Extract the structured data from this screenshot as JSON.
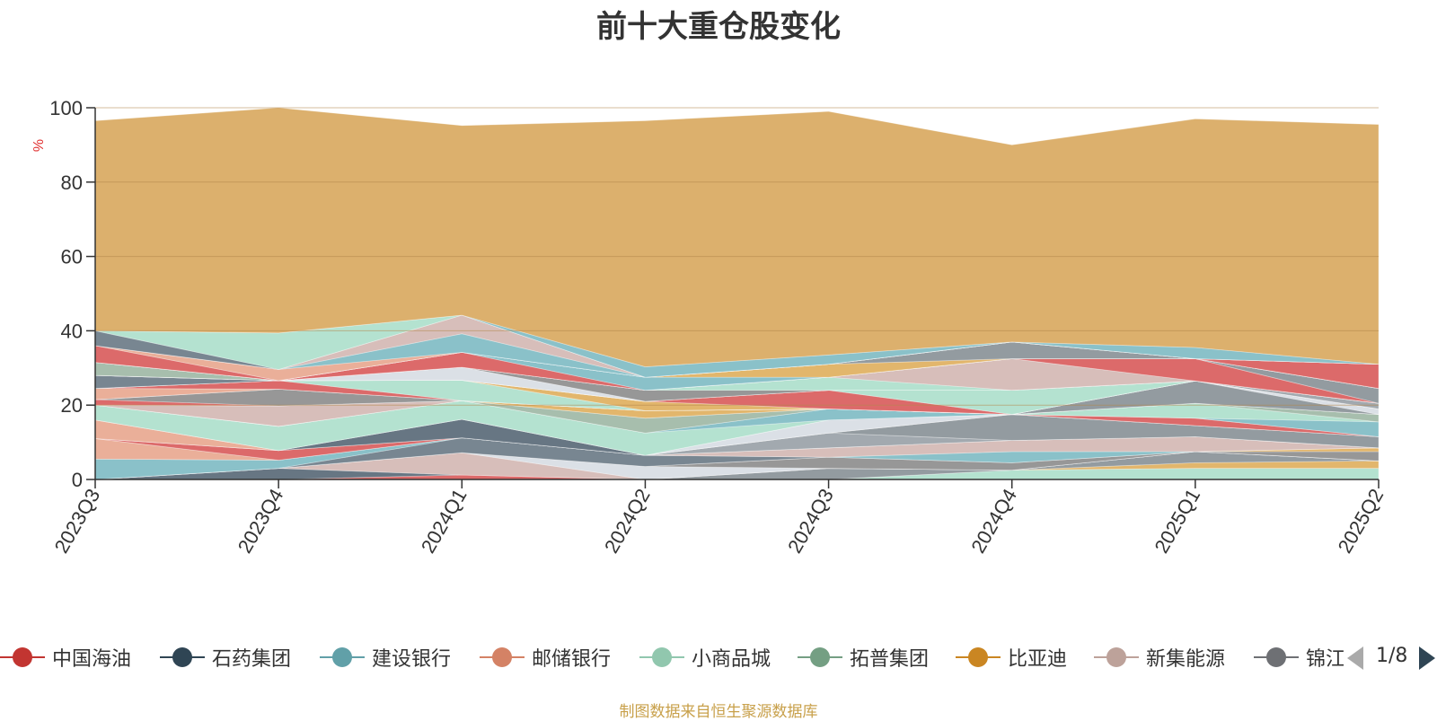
{
  "chart_title": "前十大重仓股变化",
  "source_note": "制图数据来自恒生聚源数据库",
  "legend_pager": "1/8",
  "chart_data": {
    "type": "area",
    "stacked": true,
    "title": "前十大重仓股变化",
    "ylabel": "%",
    "ylim": [
      0,
      100
    ],
    "yticks": [
      0,
      20,
      40,
      60,
      80,
      100
    ],
    "grid": true,
    "categories": [
      "2023Q3",
      "2023Q4",
      "2024Q1",
      "2024Q2",
      "2024Q3",
      "2024Q4",
      "2025Q1",
      "2025Q2"
    ],
    "legend_position": "bottom",
    "legend_visible": [
      "中国海油",
      "石药集团",
      "建设银行",
      "邮储银行",
      "小商品城",
      "拓普集团",
      "比亚迪",
      "新集能源",
      "锦江"
    ],
    "series": [
      {
        "name": "",
        "color": "#aee0cc",
        "values": [
          0,
          0,
          0,
          0,
          0,
          2.5,
          3,
          3
        ]
      },
      {
        "name": "",
        "color": "#e0b060",
        "values": [
          0,
          0,
          0,
          0,
          0,
          0,
          1.5,
          2
        ]
      },
      {
        "name": "",
        "color": "#8a9398",
        "values": [
          0,
          0,
          0,
          0,
          3,
          0,
          3,
          0
        ]
      },
      {
        "name": "中国海油",
        "color": "#d95d5d",
        "values": [
          0,
          0,
          1.2,
          0,
          0,
          0,
          0,
          0
        ]
      },
      {
        "name": "石药集团",
        "color": "#5a6a78",
        "values": [
          0,
          3,
          0,
          0,
          0,
          0,
          0,
          0
        ]
      },
      {
        "name": "新集能源",
        "color": "#d4b8b4",
        "values": [
          0,
          0,
          6,
          0,
          0,
          0,
          0,
          0
        ]
      },
      {
        "name": "",
        "color": "#d8dde4",
        "values": [
          0,
          0,
          0,
          3.5,
          0,
          0,
          0,
          0
        ]
      },
      {
        "name": "",
        "color": "#8e8e8e",
        "values": [
          0,
          0,
          0,
          0,
          3,
          2,
          0,
          2.5
        ]
      },
      {
        "name": "",
        "color": "#e0b060",
        "values": [
          0,
          0,
          0,
          0,
          0,
          0,
          0,
          1
        ]
      },
      {
        "name": "",
        "color": "#6d7c88",
        "values": [
          0,
          0,
          4,
          3,
          0,
          0,
          0,
          0
        ]
      },
      {
        "name": "建设银行",
        "color": "#80bcc4",
        "values": [
          5.5,
          2.2,
          0,
          0,
          0,
          3,
          0,
          0
        ]
      },
      {
        "name": "",
        "color": "#d4b8b4",
        "values": [
          0,
          0,
          0,
          0,
          2.5,
          3,
          4,
          0
        ]
      },
      {
        "name": "邮储银行",
        "color": "#e8a890",
        "values": [
          5.5,
          0,
          0,
          0,
          0,
          0,
          0,
          0
        ]
      },
      {
        "name": "",
        "color": "#d95d5d",
        "values": [
          0,
          2.6,
          0,
          0,
          0,
          0,
          0,
          0
        ]
      },
      {
        "name": "",
        "color": "#9aa2a8",
        "values": [
          0,
          0,
          0,
          0,
          4,
          0,
          0,
          0
        ]
      },
      {
        "name": "",
        "color": "#8a9398",
        "values": [
          0,
          0,
          0,
          0,
          0,
          7,
          3,
          3
        ]
      },
      {
        "name": "",
        "color": "#5a6a78",
        "values": [
          0,
          0,
          5,
          0,
          0,
          0,
          0,
          0
        ]
      },
      {
        "name": "",
        "color": "#e8a890",
        "values": [
          5,
          0,
          0,
          0,
          0,
          0,
          0,
          0
        ]
      },
      {
        "name": "",
        "color": "#d8dde4",
        "values": [
          0,
          0,
          0,
          0,
          3.5,
          0,
          0,
          0
        ]
      },
      {
        "name": "",
        "color": "#d95d5d",
        "values": [
          0,
          0,
          0,
          0,
          0,
          0,
          2,
          0
        ]
      },
      {
        "name": "小商品城",
        "color": "#aee0cc",
        "values": [
          4,
          6.5,
          5,
          6,
          0,
          0,
          0,
          0
        ]
      },
      {
        "name": "",
        "color": "#80bcc4",
        "values": [
          0,
          0,
          0,
          0,
          3,
          0,
          0,
          4
        ]
      },
      {
        "name": "",
        "color": "#aee0cc",
        "values": [
          0,
          0,
          0,
          0,
          0,
          0,
          4,
          0
        ]
      },
      {
        "name": "拓普集团",
        "color": "#9fb8a6",
        "values": [
          0,
          0,
          0,
          4,
          0,
          0,
          0,
          2
        ]
      },
      {
        "name": "",
        "color": "#d4b8b4",
        "values": [
          0,
          5.5,
          0,
          0,
          0,
          0,
          0,
          0
        ]
      },
      {
        "name": "",
        "color": "#e0b060",
        "values": [
          0,
          0,
          0,
          2,
          0,
          0,
          0,
          0
        ]
      },
      {
        "name": "",
        "color": "#d95d5d",
        "values": [
          1.5,
          0,
          0,
          0,
          0,
          0,
          0,
          0
        ]
      },
      {
        "name": "",
        "color": "#8e8e8e",
        "values": [
          0,
          4.5,
          0,
          0,
          0,
          0,
          0,
          0
        ]
      },
      {
        "name": "",
        "color": "#8a9398",
        "values": [
          0,
          0,
          0,
          0,
          0,
          0,
          6,
          0
        ]
      },
      {
        "name": "",
        "color": "#d8dde4",
        "values": [
          0,
          0,
          0,
          0,
          0,
          0,
          0,
          1.5
        ]
      },
      {
        "name": "",
        "color": "#e8a890",
        "values": [
          3,
          0,
          0,
          0,
          0,
          0,
          0,
          0
        ]
      },
      {
        "name": "",
        "color": "#d95d5d",
        "values": [
          0,
          2.3,
          0,
          0,
          0,
          0,
          0,
          0
        ]
      },
      {
        "name": "",
        "color": "#aee0cc",
        "values": [
          0,
          0,
          5.5,
          0,
          0,
          0,
          0,
          0
        ]
      },
      {
        "name": "",
        "color": "#e0b060",
        "values": [
          0,
          0,
          0,
          2.5,
          0,
          0,
          0,
          0
        ]
      },
      {
        "name": "",
        "color": "#d95d5d",
        "values": [
          0,
          0,
          0,
          0,
          5,
          0,
          0,
          0
        ]
      },
      {
        "name": "",
        "color": "#aee0cc",
        "values": [
          0,
          0,
          0,
          0,
          0,
          6.5,
          0,
          0
        ]
      },
      {
        "name": "",
        "color": "#9aa2a8",
        "values": [
          0,
          0,
          0,
          0,
          0,
          0,
          0,
          1.5
        ]
      },
      {
        "name": "",
        "color": "#6d7c88",
        "values": [
          3.5,
          0,
          0,
          0,
          0,
          0,
          0,
          0
        ]
      },
      {
        "name": "",
        "color": "#d8dde4",
        "values": [
          0,
          0,
          3.5,
          0,
          0,
          0,
          0,
          0
        ]
      },
      {
        "name": "",
        "color": "#8e8e8e",
        "values": [
          0,
          0,
          0,
          3,
          0,
          0,
          0,
          0
        ]
      },
      {
        "name": "",
        "color": "#aee0cc",
        "values": [
          0,
          0,
          0,
          0,
          3.5,
          0,
          0,
          0
        ]
      },
      {
        "name": "",
        "color": "#d4b8b4",
        "values": [
          0,
          0,
          0,
          0,
          0,
          8.5,
          0,
          0
        ]
      },
      {
        "name": "",
        "color": "#d95d5d",
        "values": [
          0,
          0,
          0,
          0,
          0,
          0,
          6,
          0
        ]
      },
      {
        "name": "",
        "color": "#8a9398",
        "values": [
          0,
          0,
          0,
          0,
          0,
          0,
          0,
          4
        ]
      },
      {
        "name": "",
        "color": "#9fb8a6",
        "values": [
          3.5,
          0,
          0,
          0,
          0,
          0,
          0,
          0
        ]
      },
      {
        "name": "",
        "color": "#d95d5d",
        "values": [
          0,
          0,
          4,
          0,
          0,
          0,
          0,
          0
        ]
      },
      {
        "name": "",
        "color": "#80bcc4",
        "values": [
          0,
          0,
          0,
          3.5,
          0,
          0,
          0,
          0
        ]
      },
      {
        "name": "",
        "color": "#e0b060",
        "values": [
          0,
          0,
          0,
          0,
          3.5,
          0,
          0,
          0
        ]
      },
      {
        "name": "",
        "color": "#8a9398",
        "values": [
          0,
          0,
          0,
          0,
          0,
          4.5,
          0,
          0
        ]
      },
      {
        "name": "",
        "color": "#d95d5d",
        "values": [
          0,
          0,
          0,
          0,
          0,
          0,
          0,
          6.5
        ]
      },
      {
        "name": "",
        "color": "#d95d5d",
        "values": [
          4.5,
          0,
          0,
          0,
          0,
          0,
          0,
          0
        ]
      },
      {
        "name": "",
        "color": "#e8a890",
        "values": [
          0,
          3,
          0,
          0,
          0,
          0,
          0,
          0
        ]
      },
      {
        "name": "",
        "color": "#80bcc4",
        "values": [
          0,
          0,
          5,
          0,
          0,
          0,
          0,
          0
        ]
      },
      {
        "name": "",
        "color": "#d4b8b4",
        "values": [
          0,
          0,
          5,
          0,
          0,
          0,
          0,
          0
        ]
      },
      {
        "name": "",
        "color": "#6d7c88",
        "values": [
          4,
          0,
          0,
          0,
          0,
          0,
          0,
          0
        ]
      },
      {
        "name": "",
        "color": "#aee0cc",
        "values": [
          0,
          9.8,
          0,
          0,
          0,
          0,
          0,
          0
        ]
      },
      {
        "name": "",
        "color": "#80bcc4",
        "values": [
          0,
          0,
          0,
          2.8,
          2.5,
          0,
          3,
          0
        ]
      },
      {
        "name": "锦江",
        "color": "#d9a961",
        "values": [
          56.5,
          60.6,
          51,
          66.2,
          65.5,
          53,
          61.5,
          64.5
        ]
      }
    ]
  },
  "colors": {
    "title": "#333333",
    "axis": "#333333",
    "grid": "#b5874a",
    "ylabel": "#e03030",
    "source": "#c8a04a",
    "pager_inactive": "#aaaaaa",
    "pager_active": "#2f4554"
  },
  "legend": [
    {
      "label": "中国海油",
      "color": "#c23531",
      "icon": "circle-line-marker"
    },
    {
      "label": "石药集团",
      "color": "#2f4554",
      "icon": "circle-line-marker"
    },
    {
      "label": "建设银行",
      "color": "#61a0a8",
      "icon": "circle-line-marker"
    },
    {
      "label": "邮储银行",
      "color": "#d48265",
      "icon": "circle-line-marker"
    },
    {
      "label": "小商品城",
      "color": "#91c7ae",
      "icon": "circle-line-marker"
    },
    {
      "label": "拓普集团",
      "color": "#749f83",
      "icon": "circle-line-marker"
    },
    {
      "label": "比亚迪",
      "color": "#ca8622",
      "icon": "circle-line-marker"
    },
    {
      "label": "新集能源",
      "color": "#bda29a",
      "icon": "circle-line-marker"
    },
    {
      "label": "锦江",
      "color": "#6e7074",
      "icon": "circle-line-marker"
    }
  ]
}
